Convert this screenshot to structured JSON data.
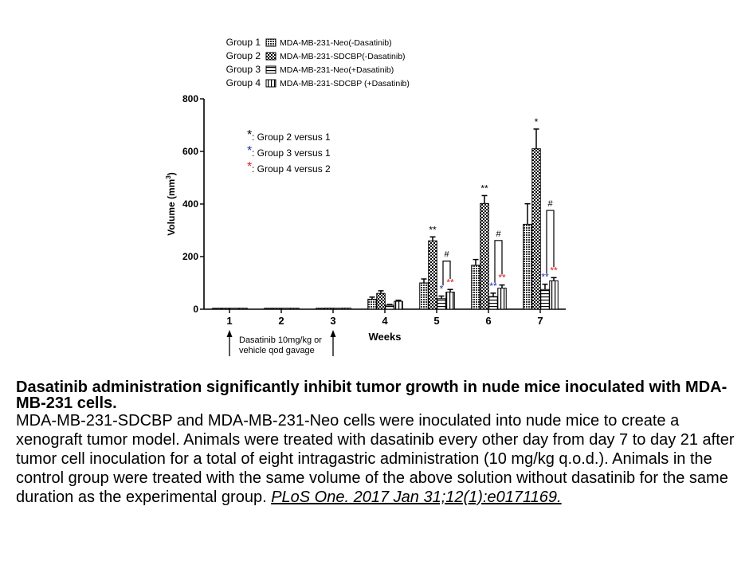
{
  "chart_data": {
    "type": "bar",
    "xlabel": "Weeks",
    "ylabel": "Volume (mm",
    "ylabel_sup": "3",
    "ylabel_close": ")",
    "ylim": [
      0,
      800
    ],
    "yticks": [
      0,
      200,
      400,
      600,
      800
    ],
    "categories": [
      "1",
      "2",
      "3",
      "4",
      "5",
      "6",
      "7"
    ],
    "series": [
      {
        "name": "MDA-MB-231-Neo(-Dasatinib)",
        "group": "Group 1",
        "pattern": "dense",
        "values": [
          0,
          1,
          2,
          38,
          100,
          167,
          323
        ],
        "errors": [
          0,
          0,
          0,
          8,
          15,
          22,
          78
        ]
      },
      {
        "name": "MDA-MB-231-SDCBP(-Dasatinib)",
        "group": "Group 2",
        "pattern": "check",
        "values": [
          0,
          1,
          4,
          60,
          260,
          402,
          610
        ],
        "errors": [
          0,
          0,
          0,
          10,
          15,
          30,
          75
        ]
      },
      {
        "name": "MDA-MB-231-Neo(+Dasatinib)",
        "group": "Group 3",
        "pattern": "hstripe",
        "values": [
          0,
          1,
          3,
          15,
          40,
          48,
          75
        ],
        "errors": [
          0,
          0,
          0,
          3,
          10,
          13,
          20
        ]
      },
      {
        "name": "MDA-MB-231-SDCBP (+Dasatinib)",
        "group": "Group 4",
        "pattern": "vstripe",
        "values": [
          0,
          1,
          4,
          30,
          65,
          80,
          108
        ],
        "errors": [
          0,
          0,
          0,
          4,
          10,
          12,
          12
        ]
      }
    ],
    "significance": [
      {
        "category": 4,
        "series": 1,
        "text": "**",
        "color": "#000000"
      },
      {
        "category": 4,
        "series": 2,
        "text": "*",
        "color": "#1f2fa8"
      },
      {
        "category": 4,
        "series": 3,
        "text": "**",
        "color": "#d42020"
      },
      {
        "category": 5,
        "series": 1,
        "text": "**",
        "color": "#000000"
      },
      {
        "category": 5,
        "series": 2,
        "text": "**",
        "color": "#1f2fa8"
      },
      {
        "category": 5,
        "series": 3,
        "text": "**",
        "color": "#d42020"
      },
      {
        "category": 6,
        "series": 1,
        "text": "*",
        "color": "#000000"
      },
      {
        "category": 6,
        "series": 2,
        "text": "**",
        "color": "#1f2fa8"
      },
      {
        "category": 6,
        "series": 3,
        "text": "**",
        "color": "#d42020"
      }
    ],
    "hash_brackets": [
      {
        "category": 4,
        "text": "#"
      },
      {
        "category": 5,
        "text": "#"
      },
      {
        "category": 6,
        "text": "#"
      }
    ],
    "key": [
      {
        "star": "*",
        "color": "#000000",
        "text": ": Group 2 versus 1"
      },
      {
        "star": "*",
        "color": "#1f2fa8",
        "text": ": Group 3 versus 1"
      },
      {
        "star": "*",
        "color": "#d42020",
        "text": ": Group 4 versus 2"
      }
    ],
    "annotation": [
      "Dasatinib 10mg/kg or",
      "vehicle qod gavage"
    ],
    "arrow_at_categories": [
      0,
      2
    ],
    "legend_position": "top"
  },
  "caption": {
    "title": "Dasatinib administration significantly inhibit tumor growth in nude mice inoculated with MDA-MB-231 cells.",
    "body": "MDA-MB-231-SDCBP and MDA-MB-231-Neo cells were inoculated into nude mice to create a xenograft tumor model. Animals were treated with dasatinib every other day from day 7 to day 21 after tumor cell inoculation for a total of eight intragastric administration (10 mg/kg q.o.d.). Animals in the control group were treated with the same volume of the above solution without dasatinib for the same duration as the experimental group. ",
    "citation": "PLoS One. 2017 Jan 31;12(1):e0171169."
  }
}
